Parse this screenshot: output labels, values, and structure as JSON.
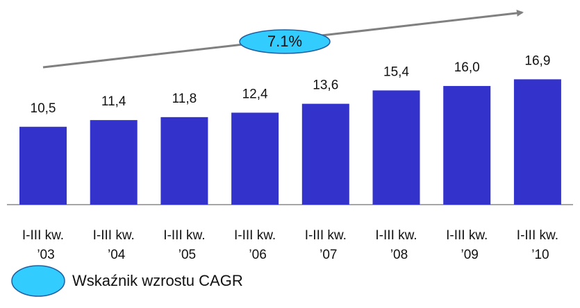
{
  "chart_data": {
    "type": "bar",
    "categories": [
      [
        "I-III kw.",
        "’03"
      ],
      [
        "I-III kw.",
        "’04"
      ],
      [
        "I-III kw.",
        "’05"
      ],
      [
        "I-III kw.",
        "’06"
      ],
      [
        "I-III kw.",
        "’07"
      ],
      [
        "I-III kw.",
        "’08"
      ],
      [
        "I-III kw.",
        "’09"
      ],
      [
        "I-III kw.",
        "’10"
      ]
    ],
    "values": [
      10.5,
      11.4,
      11.8,
      12.4,
      13.6,
      15.4,
      16.0,
      16.9
    ],
    "value_labels": [
      "10,5",
      "11,4",
      "11,8",
      "12,4",
      "13,6",
      "15,4",
      "16,0",
      "16,9"
    ],
    "color": "#3333cc",
    "ylim": [
      0,
      27.5
    ],
    "annotation": "7.1%",
    "legend": "Wskaźnik wzrostu CAGR"
  }
}
